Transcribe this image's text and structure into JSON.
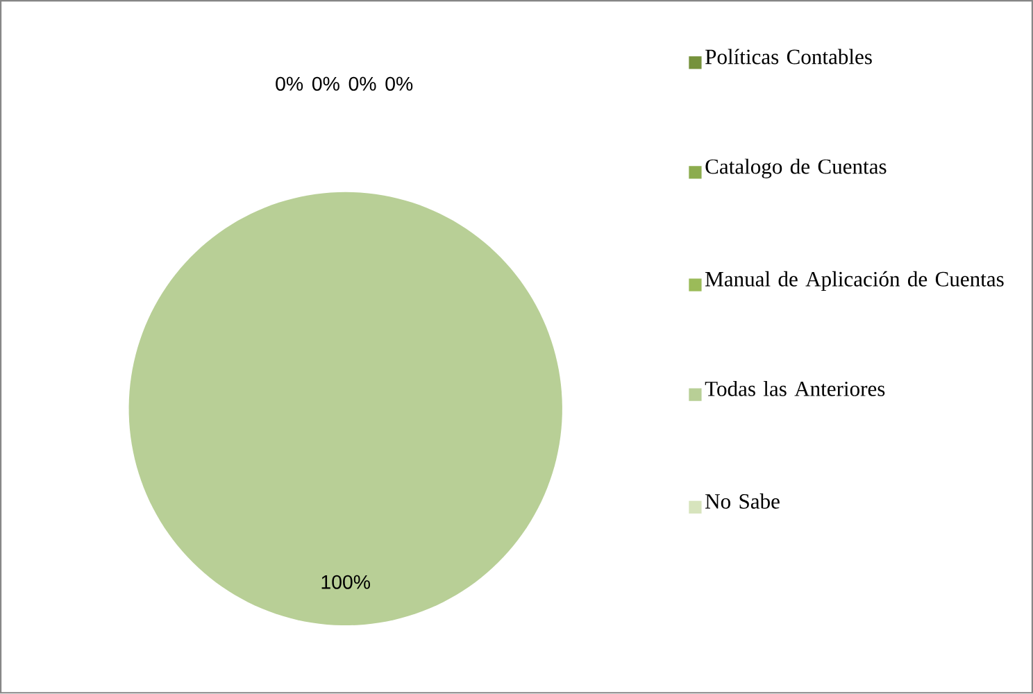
{
  "chart_data": {
    "type": "pie",
    "categories": [
      "Políticas Contables",
      "Catalogo de Cuentas",
      "Manual de Aplicación de Cuentas",
      "Todas las Anteriores",
      "No Sabe"
    ],
    "values": [
      0,
      0,
      0,
      100,
      0
    ],
    "colors": [
      "#76923c",
      "#8cac4e",
      "#9bbb59",
      "#b8cf96",
      "#d7e4bd"
    ],
    "value_labels": [
      "0%",
      "0%",
      "0%",
      "100%",
      "0%"
    ],
    "legend": "right"
  }
}
